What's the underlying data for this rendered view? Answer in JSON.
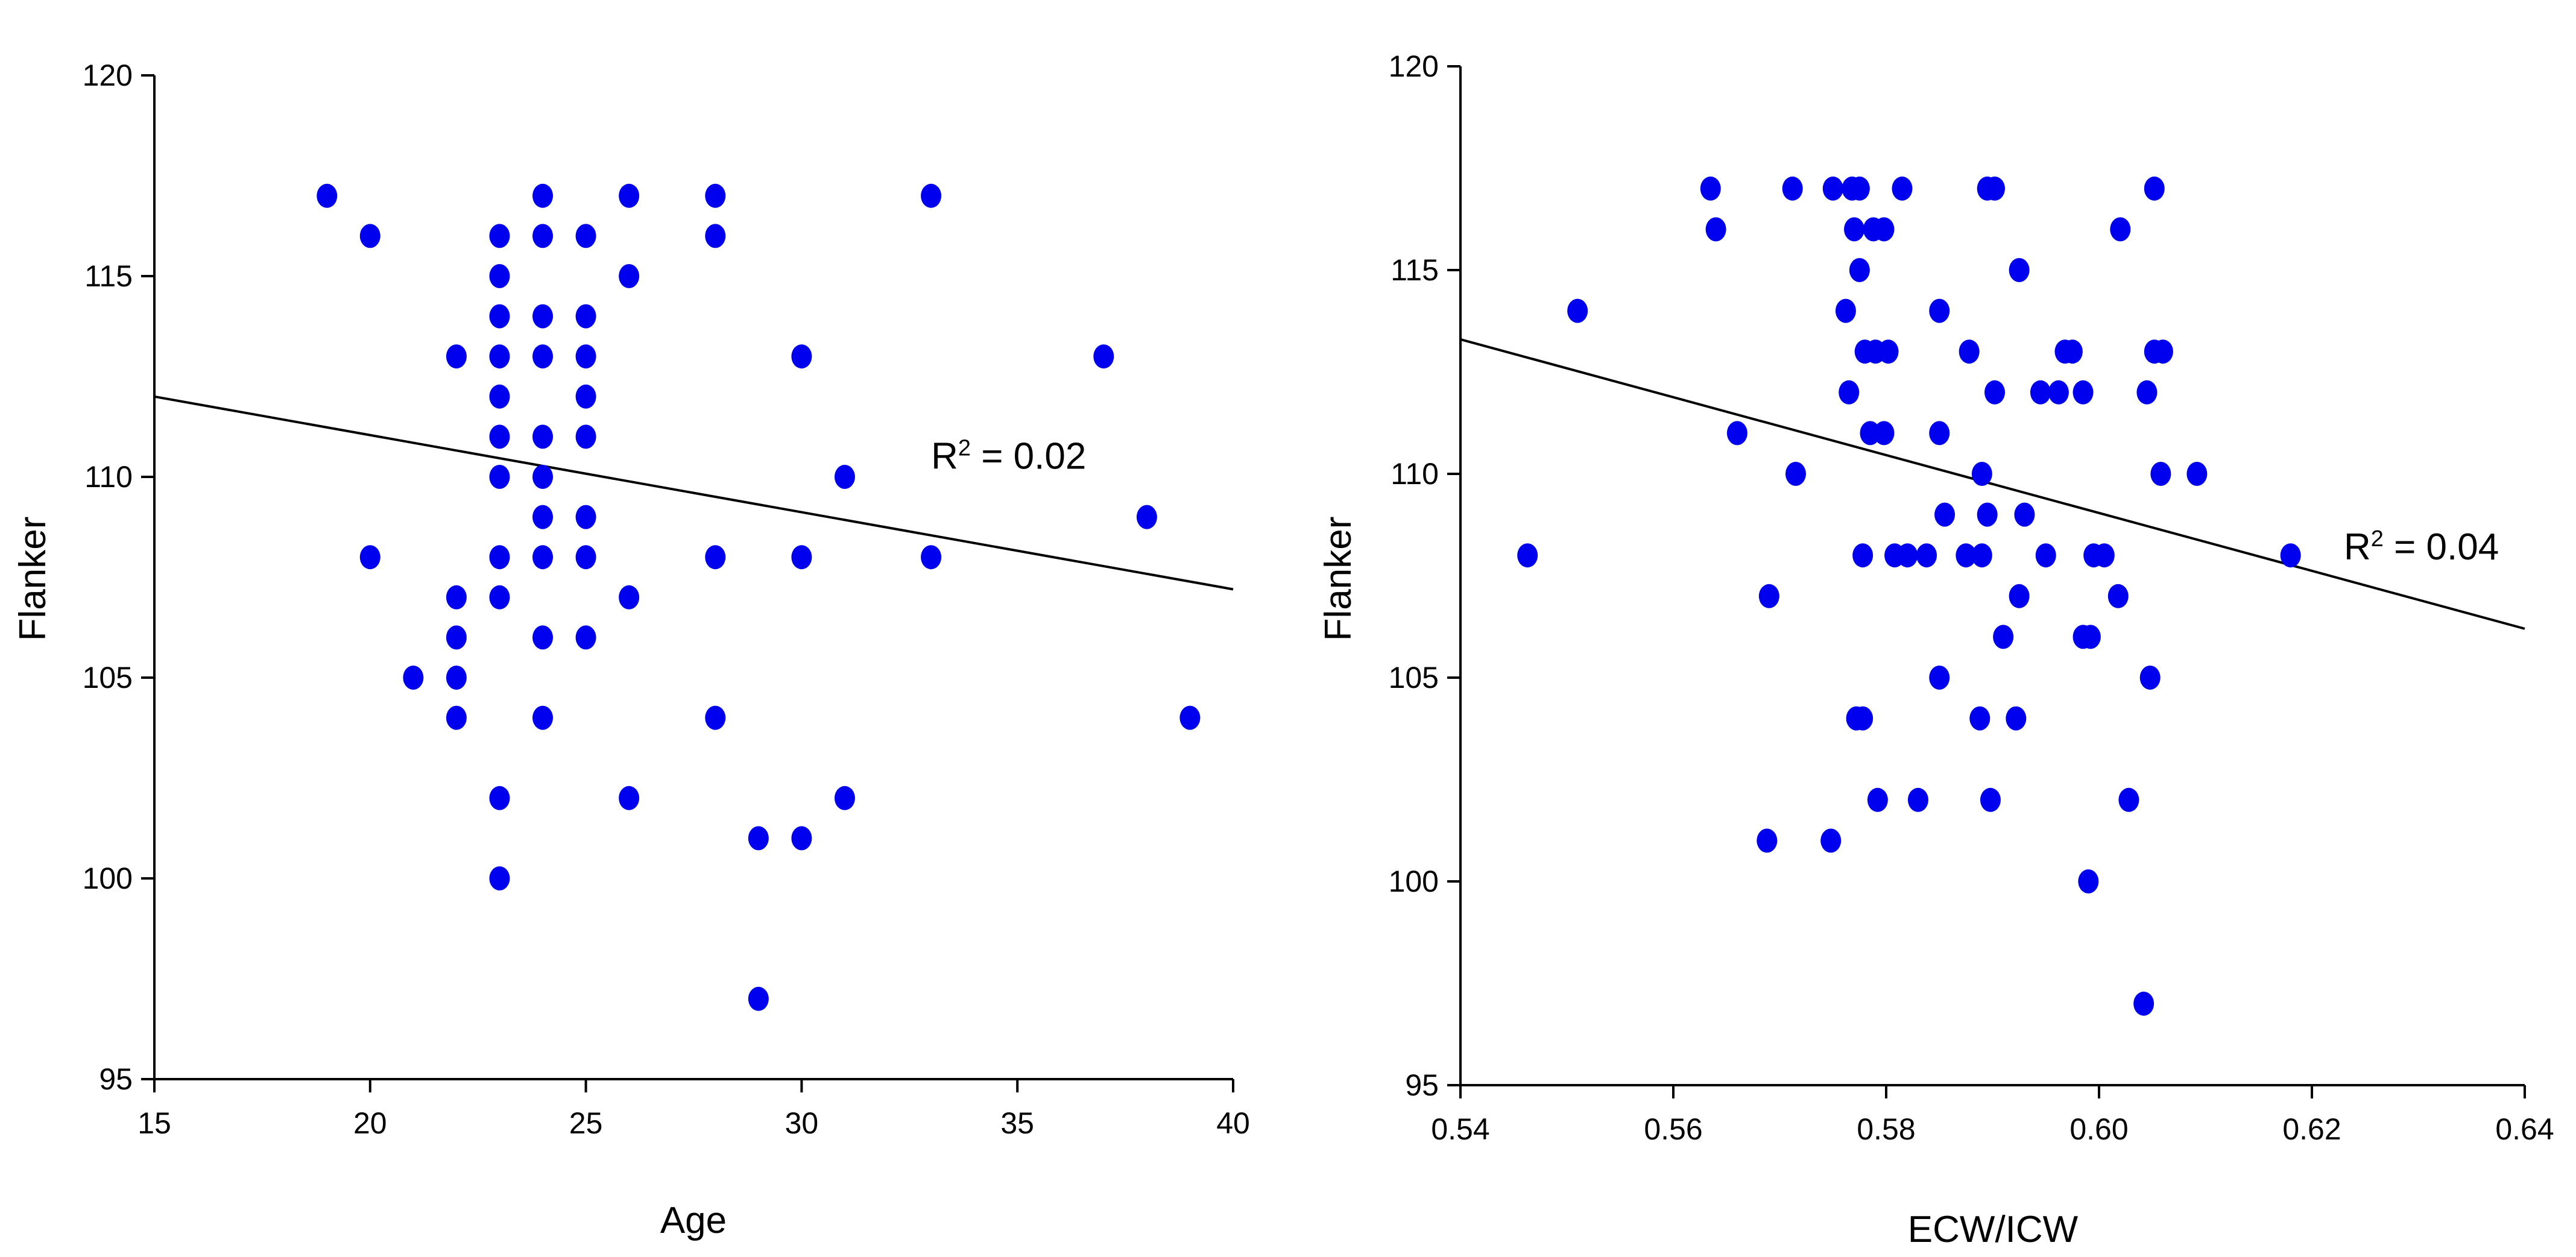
{
  "colors": {
    "points": "#0000ee",
    "axes": "#000000",
    "background": "#ffffff"
  },
  "chart_data": [
    {
      "type": "scatter",
      "title": "",
      "xlabel": "Age",
      "ylabel": "Flanker",
      "xlim": [
        15,
        40
      ],
      "ylim": [
        95,
        120
      ],
      "xticks": [
        15,
        20,
        25,
        30,
        35,
        40
      ],
      "yticks": [
        95,
        100,
        105,
        110,
        115,
        120
      ],
      "xtick_labels": [
        "15",
        "20",
        "25",
        "30",
        "35",
        "40"
      ],
      "ytick_labels": [
        "95",
        "100",
        "105",
        "110",
        "115",
        "120"
      ],
      "trendline": {
        "x": [
          15,
          40
        ],
        "y": [
          112.0,
          107.2
        ]
      },
      "annotation": {
        "prefix": "R",
        "superscript": "2",
        "suffix": " = 0.02",
        "x": 33,
        "y": 110.2
      },
      "points": [
        [
          19,
          117
        ],
        [
          20,
          116
        ],
        [
          20,
          108
        ],
        [
          21,
          105
        ],
        [
          22,
          113
        ],
        [
          22,
          107
        ],
        [
          22,
          106
        ],
        [
          22,
          105
        ],
        [
          22,
          104
        ],
        [
          23,
          116
        ],
        [
          23,
          115
        ],
        [
          23,
          114
        ],
        [
          23,
          113
        ],
        [
          23,
          112
        ],
        [
          23,
          111
        ],
        [
          23,
          110
        ],
        [
          23,
          108
        ],
        [
          23,
          107
        ],
        [
          23,
          102
        ],
        [
          23,
          100
        ],
        [
          24,
          117
        ],
        [
          24,
          116
        ],
        [
          24,
          114
        ],
        [
          24,
          113
        ],
        [
          24,
          111
        ],
        [
          24,
          110
        ],
        [
          24,
          109
        ],
        [
          24,
          108
        ],
        [
          24,
          106
        ],
        [
          24,
          104
        ],
        [
          25,
          116
        ],
        [
          25,
          114
        ],
        [
          25,
          113
        ],
        [
          25,
          112
        ],
        [
          25,
          111
        ],
        [
          25,
          109
        ],
        [
          25,
          108
        ],
        [
          25,
          106
        ],
        [
          26,
          117
        ],
        [
          26,
          115
        ],
        [
          26,
          107
        ],
        [
          26,
          102
        ],
        [
          28,
          117
        ],
        [
          28,
          116
        ],
        [
          28,
          108
        ],
        [
          28,
          104
        ],
        [
          29,
          101
        ],
        [
          29,
          97
        ],
        [
          30,
          113
        ],
        [
          30,
          108
        ],
        [
          30,
          101
        ],
        [
          31,
          110
        ],
        [
          31,
          102
        ],
        [
          33,
          117
        ],
        [
          33,
          108
        ],
        [
          37,
          113
        ],
        [
          38,
          109
        ],
        [
          39,
          104
        ]
      ]
    },
    {
      "type": "scatter",
      "title": "",
      "xlabel": "ECW/ICW",
      "ylabel": "Flanker",
      "xlim": [
        0.54,
        0.64
      ],
      "ylim": [
        95,
        120
      ],
      "xticks": [
        0.54,
        0.56,
        0.58,
        0.6,
        0.62,
        0.64
      ],
      "yticks": [
        95,
        100,
        105,
        110,
        115,
        120
      ],
      "xtick_labels": [
        "0.54",
        "0.56",
        "0.58",
        "0.60",
        "0.62",
        "0.64"
      ],
      "ytick_labels": [
        "95",
        "100",
        "105",
        "110",
        "115",
        "120"
      ],
      "trendline": {
        "x": [
          0.54,
          0.64
        ],
        "y": [
          113.3,
          106.2
        ]
      },
      "annotation": {
        "prefix": "R",
        "superscript": "2",
        "suffix": " = 0.04",
        "x": 0.623,
        "y": 107.9
      },
      "points": [
        [
          0.5463,
          108
        ],
        [
          0.551,
          114
        ],
        [
          0.5635,
          117
        ],
        [
          0.564,
          116
        ],
        [
          0.566,
          111
        ],
        [
          0.5688,
          101
        ],
        [
          0.569,
          107
        ],
        [
          0.5715,
          110
        ],
        [
          0.5712,
          117
        ],
        [
          0.575,
          117
        ],
        [
          0.5748,
          101
        ],
        [
          0.5762,
          114
        ],
        [
          0.5765,
          112
        ],
        [
          0.577,
          116
        ],
        [
          0.5768,
          117
        ],
        [
          0.5775,
          117
        ],
        [
          0.5772,
          104
        ],
        [
          0.5778,
          104
        ],
        [
          0.5775,
          115
        ],
        [
          0.578,
          113
        ],
        [
          0.5778,
          108
        ],
        [
          0.5785,
          111
        ],
        [
          0.579,
          113
        ],
        [
          0.5788,
          116
        ],
        [
          0.5792,
          102
        ],
        [
          0.5798,
          116
        ],
        [
          0.5798,
          111
        ],
        [
          0.5802,
          113
        ],
        [
          0.5815,
          117
        ],
        [
          0.5808,
          108
        ],
        [
          0.582,
          108
        ],
        [
          0.583,
          102
        ],
        [
          0.5838,
          108
        ],
        [
          0.585,
          114
        ],
        [
          0.585,
          111
        ],
        [
          0.585,
          105
        ],
        [
          0.5855,
          109
        ],
        [
          0.5875,
          108
        ],
        [
          0.5878,
          113
        ],
        [
          0.589,
          110
        ],
        [
          0.5888,
          104
        ],
        [
          0.589,
          108
        ],
        [
          0.5895,
          109
        ],
        [
          0.5895,
          117
        ],
        [
          0.5898,
          102
        ],
        [
          0.5902,
          117
        ],
        [
          0.5902,
          112
        ],
        [
          0.591,
          106
        ],
        [
          0.5925,
          115
        ],
        [
          0.5922,
          104
        ],
        [
          0.5925,
          107
        ],
        [
          0.593,
          109
        ],
        [
          0.5945,
          112
        ],
        [
          0.595,
          108
        ],
        [
          0.5962,
          112
        ],
        [
          0.5968,
          113
        ],
        [
          0.5975,
          113
        ],
        [
          0.5985,
          112
        ],
        [
          0.5985,
          106
        ],
        [
          0.599,
          100
        ],
        [
          0.5992,
          106
        ],
        [
          0.5995,
          108
        ],
        [
          0.6005,
          108
        ],
        [
          0.602,
          116
        ],
        [
          0.6018,
          107
        ],
        [
          0.6028,
          102
        ],
        [
          0.6042,
          97
        ],
        [
          0.6045,
          112
        ],
        [
          0.6048,
          105
        ],
        [
          0.6052,
          117
        ],
        [
          0.6052,
          113
        ],
        [
          0.6058,
          110
        ],
        [
          0.606,
          113
        ],
        [
          0.6092,
          110
        ],
        [
          0.618,
          108
        ]
      ]
    }
  ]
}
